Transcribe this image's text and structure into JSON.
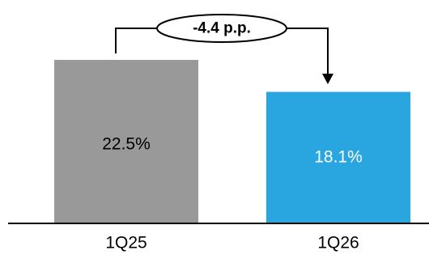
{
  "chart_data": {
    "type": "bar",
    "categories": [
      "1Q25",
      "1Q26"
    ],
    "values": [
      22.5,
      18.1
    ],
    "value_labels": [
      "22.5%",
      "18.1%"
    ],
    "bar_colors": [
      "#999999",
      "#29a6df"
    ],
    "value_label_colors": [
      "#000000",
      "#ffffff"
    ],
    "annotation": {
      "text": "-4.4 p.p.",
      "from_category": "1Q25",
      "to_category": "1Q26"
    },
    "title": "",
    "xlabel": "",
    "ylabel": "",
    "ylim": [
      0,
      25
    ],
    "grid": false
  }
}
